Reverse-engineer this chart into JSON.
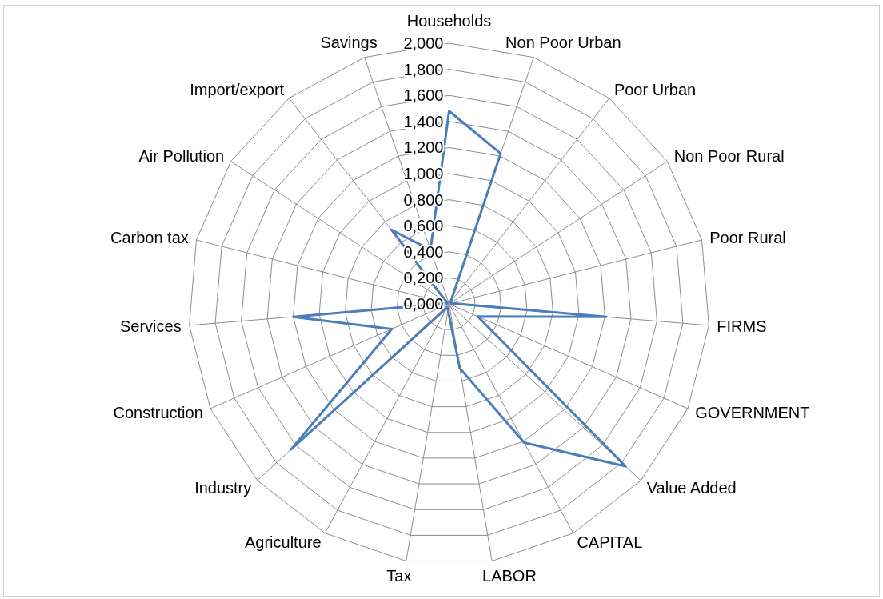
{
  "chart_data": {
    "type": "radar",
    "categories": [
      "Households",
      "Non Poor Urban",
      "Poor Urban",
      "Non Poor Rural",
      "Poor Rural",
      "FIRMS",
      "GOVERNMENT",
      "Value Added",
      "CAPITAL",
      "LABOR",
      "Tax",
      "Agriculture",
      "Industry",
      "Construction",
      "Services",
      "Carbon tax",
      "Air Pollution",
      "Import/export",
      "Savings"
    ],
    "series": [
      {
        "color": "#4a7ebb",
        "values": [
          1.48,
          1.22,
          0.02,
          0.02,
          0.02,
          1.21,
          0.24,
          1.84,
          1.21,
          0.5,
          0.05,
          0.03,
          1.65,
          0.48,
          1.2,
          0.02,
          0.02,
          0.72,
          0.44
        ]
      }
    ],
    "ylim": [
      0,
      2
    ],
    "yticks": [
      {
        "value": 0,
        "label": "0,000"
      },
      {
        "value": 0.2,
        "label": "0,200"
      },
      {
        "value": 0.4,
        "label": "0,400"
      },
      {
        "value": 0.6,
        "label": "0,600"
      },
      {
        "value": 0.8,
        "label": "0,800"
      },
      {
        "value": 1,
        "label": "1,000"
      },
      {
        "value": 1.2,
        "label": "1,200"
      },
      {
        "value": 1.4,
        "label": "1,400"
      },
      {
        "value": 1.6,
        "label": "1,600"
      },
      {
        "value": 1.8,
        "label": "1,800"
      },
      {
        "value": 2,
        "label": "2,000"
      }
    ],
    "grid": true
  }
}
